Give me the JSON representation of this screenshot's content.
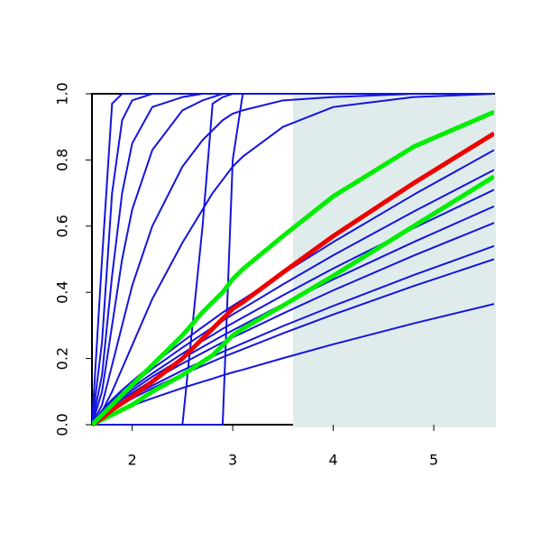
{
  "chart_data": {
    "type": "line",
    "x": [
      1.6,
      1.7,
      1.8,
      1.9,
      2.0,
      2.2,
      2.5,
      2.7,
      2.8,
      2.9,
      3.0,
      3.1,
      3.5,
      4.0,
      4.8,
      5.6
    ],
    "xlim": [
      1.6,
      5.6
    ],
    "ylim": [
      0,
      1
    ],
    "xticks": [
      2,
      3,
      4,
      5
    ],
    "yticks": [
      {
        "value": 0,
        "label": "0.0"
      },
      {
        "value": 0.2,
        "label": "0.2"
      },
      {
        "value": 0.4,
        "label": "0.4"
      },
      {
        "value": 0.6,
        "label": "0.6"
      },
      {
        "value": 0.8,
        "label": "0.8"
      },
      {
        "value": 1,
        "label": "1.0"
      }
    ],
    "shade": {
      "xlim": [
        3.6,
        5.6
      ],
      "color": "#e0ecec"
    },
    "series": [
      {
        "color": "#1414e0",
        "line_width": 2,
        "values": [
          0,
          0.5,
          0.97,
          1,
          1,
          1,
          1,
          1,
          1,
          1,
          1,
          1,
          1,
          1,
          1,
          1
        ]
      },
      {
        "color": "#1414e0",
        "line_width": 2,
        "values": [
          0,
          0.25,
          0.7,
          0.92,
          0.98,
          1,
          1,
          1,
          1,
          1,
          1,
          1,
          1,
          1,
          1,
          1
        ]
      },
      {
        "color": "#1414e0",
        "line_width": 2,
        "values": [
          0,
          0.15,
          0.45,
          0.7,
          0.85,
          0.96,
          0.99,
          1,
          1,
          1,
          1,
          1,
          1,
          1,
          1,
          1
        ]
      },
      {
        "color": "#1414e0",
        "line_width": 2,
        "values": [
          0,
          0.1,
          0.3,
          0.5,
          0.65,
          0.83,
          0.95,
          0.98,
          0.99,
          1,
          1,
          1,
          1,
          1,
          1,
          1
        ]
      },
      {
        "color": "#1414e0",
        "line_width": 2,
        "values": [
          0,
          0.06,
          0.18,
          0.3,
          0.42,
          0.6,
          0.78,
          0.86,
          0.89,
          0.92,
          0.94,
          0.95,
          0.98,
          0.99,
          1,
          1
        ]
      },
      {
        "color": "#1414e0",
        "line_width": 2,
        "values": [
          0,
          0.04,
          0.1,
          0.17,
          0.24,
          0.38,
          0.55,
          0.65,
          0.7,
          0.74,
          0.78,
          0.81,
          0.9,
          0.96,
          0.99,
          1
        ]
      },
      {
        "color": "#1414e0",
        "line_width": 2,
        "values": [
          0,
          0,
          0,
          0,
          0,
          0,
          0,
          0.6,
          0.97,
          0.99,
          1,
          1,
          1,
          1,
          1,
          1
        ]
      },
      {
        "color": "#1414e0",
        "line_width": 2,
        "values": [
          0,
          0,
          0,
          0,
          0,
          0,
          0,
          0,
          0,
          0,
          0.8,
          1,
          1,
          1,
          1,
          1
        ]
      },
      {
        "color": "#1414e0",
        "line_width": 2,
        "values": [
          0,
          0.043,
          0.076,
          0.105,
          0.131,
          0.182,
          0.251,
          0.295,
          0.317,
          0.339,
          0.359,
          0.378,
          0.457,
          0.552,
          0.695,
          0.83
        ]
      },
      {
        "color": "#1414e0",
        "line_width": 2,
        "values": [
          0,
          0.04,
          0.07,
          0.097,
          0.122,
          0.169,
          0.233,
          0.274,
          0.294,
          0.314,
          0.333,
          0.351,
          0.424,
          0.512,
          0.644,
          0.77
        ]
      },
      {
        "color": "#1414e0",
        "line_width": 2,
        "values": [
          0,
          0.037,
          0.065,
          0.089,
          0.112,
          0.155,
          0.215,
          0.253,
          0.271,
          0.29,
          0.307,
          0.324,
          0.391,
          0.472,
          0.594,
          0.71
        ]
      },
      {
        "color": "#1414e0",
        "line_width": 2,
        "values": [
          0,
          0.034,
          0.06,
          0.083,
          0.104,
          0.145,
          0.2,
          0.235,
          0.252,
          0.269,
          0.285,
          0.301,
          0.364,
          0.439,
          0.552,
          0.66
        ]
      },
      {
        "color": "#1414e0",
        "line_width": 2,
        "values": [
          0,
          0.032,
          0.056,
          0.077,
          0.096,
          0.134,
          0.185,
          0.217,
          0.233,
          0.249,
          0.264,
          0.278,
          0.336,
          0.406,
          0.511,
          0.61
        ]
      },
      {
        "color": "#1414e0",
        "line_width": 2,
        "values": [
          0,
          0.028,
          0.049,
          0.068,
          0.085,
          0.118,
          0.164,
          0.192,
          0.206,
          0.22,
          0.233,
          0.246,
          0.298,
          0.359,
          0.452,
          0.54
        ]
      },
      {
        "color": "#1414e0",
        "line_width": 2,
        "values": [
          0,
          0.026,
          0.046,
          0.063,
          0.079,
          0.11,
          0.152,
          0.178,
          0.191,
          0.204,
          0.216,
          0.228,
          0.276,
          0.333,
          0.419,
          0.5
        ]
      },
      {
        "color": "#1414e0",
        "line_width": 2,
        "values": [
          0,
          0.019,
          0.033,
          0.046,
          0.058,
          0.08,
          0.111,
          0.13,
          0.139,
          0.149,
          0.158,
          0.166,
          0.201,
          0.243,
          0.306,
          0.365
        ]
      },
      {
        "color": "#00ee00",
        "line_width": 5,
        "values": [
          0,
          0.015,
          0.03,
          0.045,
          0.06,
          0.1,
          0.15,
          0.19,
          0.21,
          0.24,
          0.27,
          0.29,
          0.36,
          0.45,
          0.6,
          0.75
        ]
      },
      {
        "color": "#ee0000",
        "line_width": 5,
        "values": [
          0,
          0.02,
          0.045,
          0.065,
          0.085,
          0.13,
          0.2,
          0.26,
          0.29,
          0.32,
          0.35,
          0.37,
          0.46,
          0.57,
          0.73,
          0.88
        ]
      },
      {
        "color": "#00ee00",
        "line_width": 5,
        "values": [
          0,
          0.03,
          0.06,
          0.09,
          0.12,
          0.18,
          0.27,
          0.34,
          0.37,
          0.4,
          0.44,
          0.47,
          0.57,
          0.69,
          0.84,
          0.945
        ]
      }
    ]
  }
}
